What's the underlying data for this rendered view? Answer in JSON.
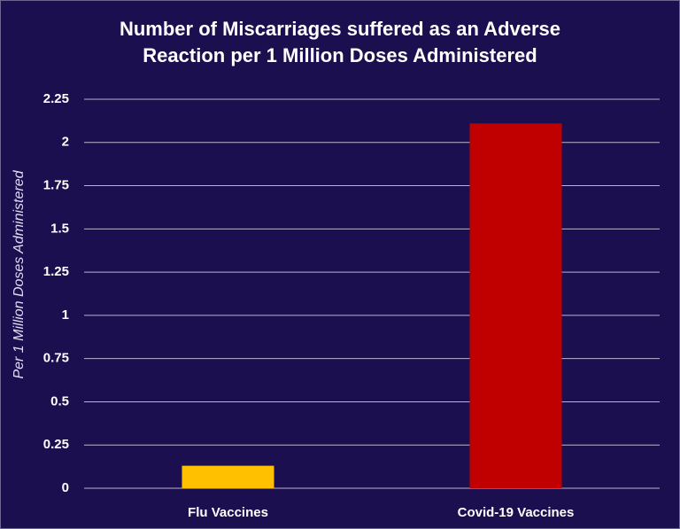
{
  "chart_data": {
    "type": "bar",
    "title": "Number of Miscarriages suffered as an Adverse Reaction per 1 Million Doses Administered",
    "y_label": "Per 1 Million Doses Administered",
    "categories": [
      "Flu Vaccines",
      "Covid-19 Vaccines"
    ],
    "values": [
      0.13,
      2.11
    ],
    "colors": [
      "#ffc000",
      "#c00000"
    ],
    "ylim": [
      0,
      2.25
    ],
    "yticks": [
      0,
      0.25,
      0.5,
      0.75,
      1,
      1.25,
      1.5,
      1.75,
      2,
      2.25
    ],
    "grid": true
  }
}
